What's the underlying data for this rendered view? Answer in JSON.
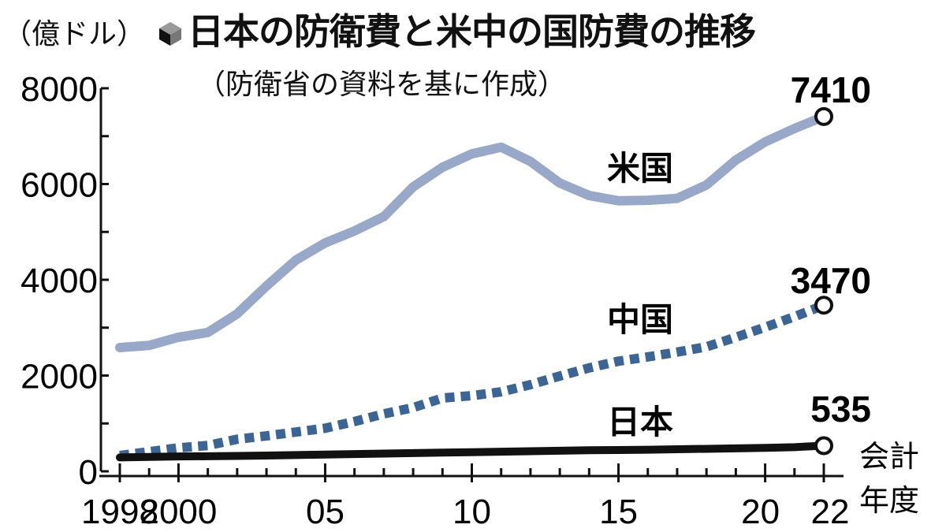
{
  "chart_data": {
    "type": "line",
    "title": "日本の防衛費と米中の国防費の推移",
    "subtitle": "（防衛省の資料を基に作成）",
    "ylabel": "（億ドル）",
    "xlabel": "会計年度",
    "xlabel_lines": [
      "会計",
      "年度"
    ],
    "ylim": [
      0,
      8000
    ],
    "xlim": [
      1998,
      2022
    ],
    "yticks": [
      0,
      2000,
      4000,
      6000,
      8000
    ],
    "yticks_labels": [
      "0",
      "2000",
      "4000",
      "6000",
      "8000"
    ],
    "xticks_labeled": [
      1998,
      2000,
      2005,
      2010,
      2015,
      2020,
      2022
    ],
    "xticks_labels": [
      "1998",
      "2000",
      "05",
      "10",
      "15",
      "20",
      "22"
    ],
    "x": [
      1998,
      1999,
      2000,
      2001,
      2002,
      2003,
      2004,
      2005,
      2006,
      2007,
      2008,
      2009,
      2010,
      2011,
      2012,
      2013,
      2014,
      2015,
      2016,
      2017,
      2018,
      2019,
      2020,
      2021,
      2022
    ],
    "series": [
      {
        "name": "米国",
        "color": "#98a8c8",
        "style": "solid",
        "end_label": "7410",
        "values": [
          2585,
          2630,
          2800,
          2900,
          3290,
          3870,
          4410,
          4770,
          5020,
          5320,
          5940,
          6350,
          6630,
          6770,
          6470,
          6020,
          5760,
          5650,
          5660,
          5700,
          5980,
          6500,
          6880,
          7160,
          7410
        ]
      },
      {
        "name": "中国",
        "color": "#3a6595",
        "style": "dashed",
        "end_label": "3470",
        "values": [
          330,
          410,
          490,
          540,
          670,
          740,
          820,
          900,
          1040,
          1200,
          1330,
          1530,
          1580,
          1660,
          1810,
          1990,
          2160,
          2300,
          2390,
          2490,
          2600,
          2800,
          3010,
          3230,
          3470
        ]
      },
      {
        "name": "日本",
        "color": "#111111",
        "style": "solid",
        "end_label": "535",
        "values": [
          290,
          300,
          310,
          315,
          320,
          330,
          340,
          350,
          360,
          370,
          380,
          390,
          400,
          410,
          420,
          430,
          440,
          445,
          450,
          460,
          470,
          480,
          490,
          505,
          535
        ]
      }
    ],
    "grid": false,
    "legend": "inline labels"
  }
}
